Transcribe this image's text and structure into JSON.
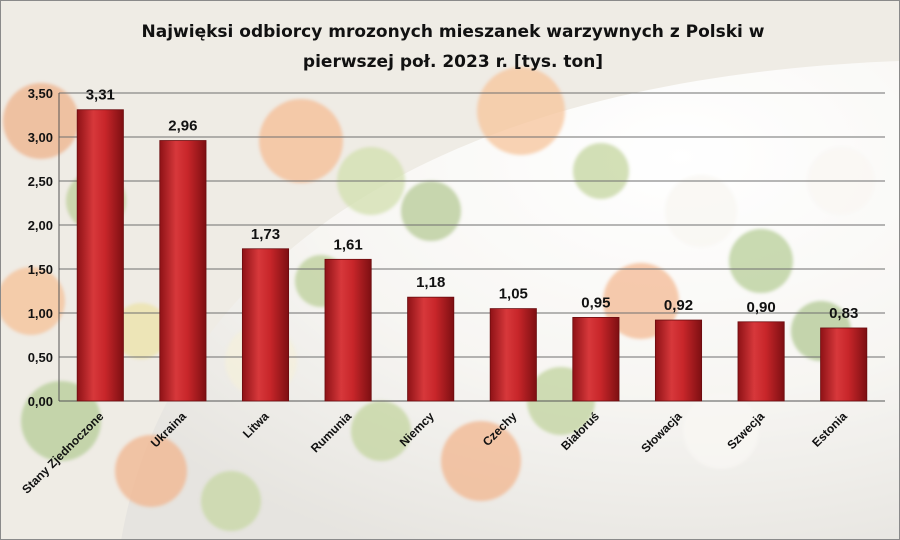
{
  "chart_data": {
    "type": "bar",
    "title": "Najwięksi odbiorcy mrozonych mieszanek warzywnych z Polski w pierwszej poł. 2023 r. [tys. ton]",
    "title_lines": [
      "Najwięksi odbiorcy mrozonych mieszanek warzywnych z Polski w",
      "pierwszej poł. 2023 r. [tys. ton]"
    ],
    "categories": [
      "Stany Zjednoczone",
      "Ukraina",
      "Litwa",
      "Rumunia",
      "Niemcy",
      "Czechy",
      "Białoruś",
      "Słowacja",
      "Szwecja",
      "Estonia"
    ],
    "values": [
      3.31,
      2.96,
      1.73,
      1.61,
      1.18,
      1.05,
      0.95,
      0.92,
      0.9,
      0.83
    ],
    "value_labels": [
      "3,31",
      "2,96",
      "1,73",
      "1,61",
      "1,18",
      "1,05",
      "0,95",
      "0,92",
      "0,90",
      "0,83"
    ],
    "ylim": [
      0,
      3.5
    ],
    "yticks": [
      0,
      0.5,
      1.0,
      1.5,
      2.0,
      2.5,
      3.0,
      3.5
    ],
    "ytick_labels": [
      "0,00",
      "0,50",
      "1,00",
      "1,50",
      "2,00",
      "2,50",
      "3,00",
      "3,50"
    ],
    "xlabel": "",
    "ylabel": "",
    "grid": true,
    "legend": "none",
    "bar_color": "#c8262a",
    "background": "photo of frozen mixed vegetables in a white bowl"
  }
}
